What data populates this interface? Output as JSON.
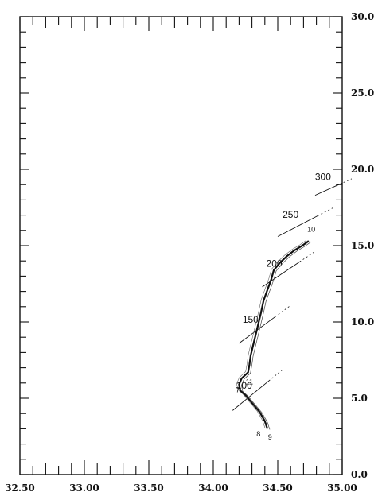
{
  "chart_data": {
    "type": "line",
    "title": "",
    "xlabel": "",
    "ylabel": "",
    "xlim": [
      32.5,
      35.0
    ],
    "ylim": [
      0.0,
      30.0
    ],
    "x_ticks": [
      "32.50",
      "33.00",
      "33.50",
      "34.00",
      "34.50",
      "35.00"
    ],
    "y_ticks": [
      "0.0",
      "5.0",
      "10.0",
      "15.0",
      "20.0",
      "25.0",
      "30.0"
    ],
    "grid": false,
    "legend": "none",
    "series": [
      {
        "values": [
          [
            34.42,
            3.0
          ],
          [
            34.4,
            3.5
          ],
          [
            34.36,
            4.1
          ],
          [
            34.3,
            4.7
          ],
          [
            34.25,
            5.2
          ],
          [
            34.21,
            5.5
          ],
          [
            34.2,
            5.9
          ],
          [
            34.22,
            6.3
          ],
          [
            34.27,
            6.7
          ],
          [
            34.28,
            7.2
          ],
          [
            34.29,
            7.8
          ],
          [
            34.31,
            8.5
          ],
          [
            34.33,
            9.2
          ],
          [
            34.35,
            9.9
          ],
          [
            34.37,
            10.6
          ],
          [
            34.39,
            11.4
          ],
          [
            34.42,
            12.1
          ],
          [
            34.45,
            12.8
          ],
          [
            34.47,
            13.4
          ],
          [
            34.52,
            13.9
          ],
          [
            34.57,
            14.3
          ],
          [
            34.63,
            14.7
          ],
          [
            34.69,
            15.0
          ],
          [
            34.74,
            15.3
          ]
        ]
      }
    ],
    "depth_lines": [
      {
        "label": "100",
        "x0": 34.15,
        "y0": 4.2,
        "x1": 34.44,
        "y1": 6.2
      },
      {
        "label": "150",
        "x0": 34.2,
        "y0": 8.6,
        "x1": 34.49,
        "y1": 10.4
      },
      {
        "label": "200",
        "x0": 34.38,
        "y0": 12.3,
        "x1": 34.68,
        "y1": 14.0
      },
      {
        "label": "250",
        "x0": 34.5,
        "y0": 15.6,
        "x1": 34.82,
        "y1": 17.0
      },
      {
        "label": "300",
        "x0": 34.79,
        "y0": 18.3,
        "x1": 35.0,
        "y1": 19.1
      }
    ],
    "station_labels": [
      {
        "label": "10",
        "x": 34.76,
        "y": 15.9
      },
      {
        "label": "11",
        "x": 34.28,
        "y": 5.9
      },
      {
        "label": "7",
        "x": 34.19,
        "y": 5.4
      },
      {
        "label": "8",
        "x": 34.35,
        "y": 2.5
      },
      {
        "label": "9",
        "x": 34.44,
        "y": 2.3
      }
    ]
  }
}
